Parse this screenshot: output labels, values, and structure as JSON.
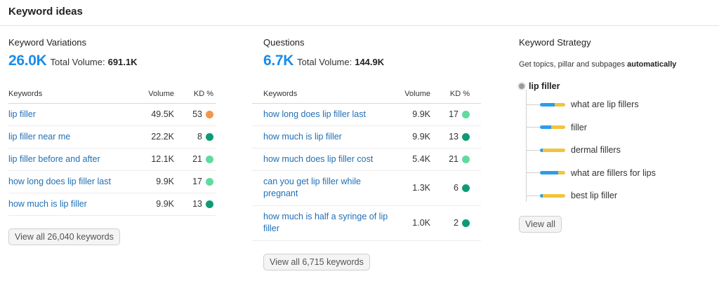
{
  "header": {
    "title": "Keyword ideas"
  },
  "variations": {
    "title": "Keyword Variations",
    "count": "26.0K",
    "total_label": "Total Volume:",
    "total_value": "691.1K",
    "columns": {
      "keyword": "Keywords",
      "volume": "Volume",
      "kd": "KD %"
    },
    "rows": [
      {
        "keyword": "lip filler",
        "volume": "49.5K",
        "kd": "53",
        "color": "#f5954a"
      },
      {
        "keyword": "lip filler near me",
        "volume": "22.2K",
        "kd": "8",
        "color": "#0f9a77"
      },
      {
        "keyword": "lip filler before and after",
        "volume": "12.1K",
        "kd": "21",
        "color": "#5fdba0"
      },
      {
        "keyword": "how long does lip filler last",
        "volume": "9.9K",
        "kd": "17",
        "color": "#5fdba0"
      },
      {
        "keyword": "how much is lip filler",
        "volume": "9.9K",
        "kd": "13",
        "color": "#0f9a77"
      }
    ],
    "button": "View all 26,040 keywords"
  },
  "questions": {
    "title": "Questions",
    "count": "6.7K",
    "total_label": "Total Volume:",
    "total_value": "144.9K",
    "columns": {
      "keyword": "Keywords",
      "volume": "Volume",
      "kd": "KD %"
    },
    "rows": [
      {
        "keyword": "how long does lip filler last",
        "volume": "9.9K",
        "kd": "17",
        "color": "#5fdba0"
      },
      {
        "keyword": "how much is lip filler",
        "volume": "9.9K",
        "kd": "13",
        "color": "#0f9a77"
      },
      {
        "keyword": "how much does lip filler cost",
        "volume": "5.4K",
        "kd": "21",
        "color": "#5fdba0"
      },
      {
        "keyword": "can you get lip filler while pregnant",
        "volume": "1.3K",
        "kd": "6",
        "color": "#0f9a77"
      },
      {
        "keyword": "how much is half a syringe of lip filler",
        "volume": "1.0K",
        "kd": "2",
        "color": "#0f9a77"
      }
    ],
    "button": "View all 6,715 keywords"
  },
  "strategy": {
    "title": "Keyword Strategy",
    "desc_prefix": "Get topics, pillar and subpages",
    "desc_bold": "automatically",
    "root": "lip filler",
    "items": [
      {
        "label": "what are lip fillers",
        "blue": 0.58,
        "yellow": 0.42
      },
      {
        "label": "filler",
        "blue": 0.45,
        "yellow": 0.55
      },
      {
        "label": "dermal fillers",
        "blue": 0.12,
        "yellow": 0.88
      },
      {
        "label": "what are fillers for lips",
        "blue": 0.72,
        "yellow": 0.28
      },
      {
        "label": "best lip filler",
        "blue": 0.12,
        "yellow": 0.88
      }
    ],
    "button": "View all"
  }
}
